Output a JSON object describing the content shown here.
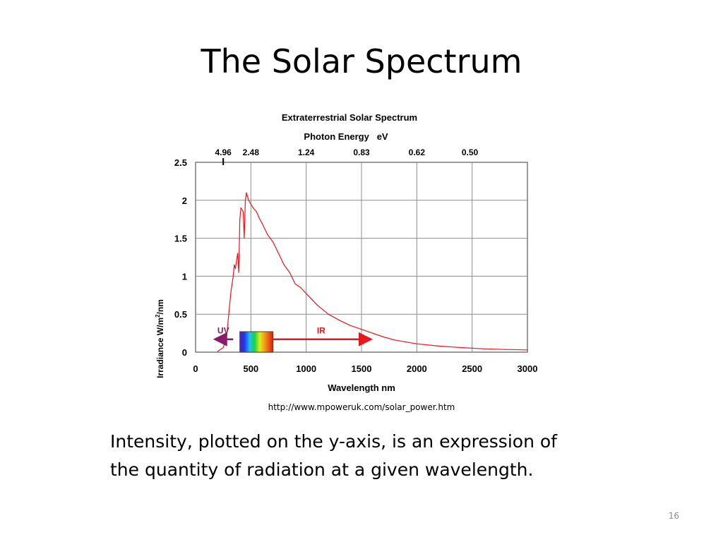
{
  "slide": {
    "title": "The Solar Spectrum",
    "source": "http://www.mpoweruk.com/solar_power.htm",
    "body": "Intensity, plotted on the y-axis, is an expression of the quantity of radiation at a given wavelength.",
    "page_number": "16"
  },
  "chart_data": {
    "type": "line",
    "title": "Extraterrestrial Solar Spectrum",
    "secondary_axis_title": "Photon Energy   eV",
    "xlabel": "Wavelength nm",
    "ylabel": "Irradiance W/m²/nm",
    "xlim": [
      0,
      3000
    ],
    "ylim": [
      0,
      2.5
    ],
    "x_ticks": [
      0,
      500,
      1000,
      1500,
      2000,
      2500,
      3000
    ],
    "y_ticks": [
      0,
      0.5,
      1,
      1.5,
      2,
      2.5
    ],
    "y_tick_labels": [
      "0",
      "0.5",
      "1",
      "1.5",
      "2",
      "2.5"
    ],
    "grid": true,
    "top_axis_ticks": [
      {
        "label": "4.96",
        "wavelength": 250
      },
      {
        "label": "2.48",
        "wavelength": 500
      },
      {
        "label": "1.24",
        "wavelength": 1000
      },
      {
        "label": "0.83",
        "wavelength": 1500
      },
      {
        "label": "0.62",
        "wavelength": 2000
      },
      {
        "label": "0.50",
        "wavelength": 2480
      }
    ],
    "series": [
      {
        "color": "#e8161e",
        "x": [
          200,
          250,
          280,
          300,
          320,
          340,
          350,
          360,
          380,
          390,
          400,
          410,
          430,
          440,
          450,
          460,
          470,
          480,
          500,
          520,
          550,
          580,
          600,
          650,
          700,
          750,
          800,
          850,
          900,
          950,
          1000,
          1100,
          1200,
          1300,
          1400,
          1500,
          1600,
          1700,
          1800,
          2000,
          2200,
          2400,
          2600,
          2800,
          3000
        ],
        "y": [
          0.01,
          0.06,
          0.2,
          0.5,
          0.8,
          1.0,
          1.15,
          1.1,
          1.3,
          1.05,
          1.75,
          1.9,
          1.85,
          1.5,
          2.0,
          2.1,
          2.05,
          2.0,
          1.95,
          1.9,
          1.85,
          1.75,
          1.7,
          1.55,
          1.45,
          1.3,
          1.15,
          1.05,
          0.9,
          0.85,
          0.77,
          0.62,
          0.5,
          0.42,
          0.35,
          0.3,
          0.25,
          0.2,
          0.16,
          0.11,
          0.08,
          0.06,
          0.045,
          0.035,
          0.03
        ]
      }
    ],
    "annotations": [
      {
        "label": "UV",
        "color": "#8b1a6b",
        "from": 340,
        "to": 190
      },
      {
        "label": "IR",
        "color": "#e8161e",
        "from": 700,
        "to": 1570
      }
    ],
    "visible_band": {
      "from": 400,
      "to": 700
    }
  }
}
